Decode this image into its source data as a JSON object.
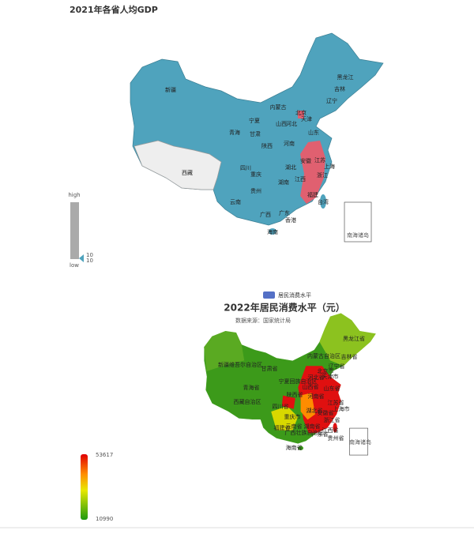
{
  "map1": {
    "title": "2021年各省人均GDP",
    "visual_map": {
      "high": "high",
      "low": "low",
      "value_labels": [
        "10",
        "10"
      ]
    },
    "regions": [
      "新疆",
      "西藏",
      "青海",
      "甘肃",
      "宁夏",
      "内蒙古",
      "黑龙江",
      "吉林",
      "辽宁",
      "北京",
      "天津",
      "河北",
      "山西",
      "山东",
      "陕西",
      "河南",
      "江苏",
      "安徽",
      "上海",
      "浙江",
      "湖北",
      "四川",
      "重庆",
      "湖南",
      "江西",
      "福建",
      "贵州",
      "云南",
      "广西",
      "广东",
      "台湾",
      "香港",
      "海南"
    ],
    "south_sea": "南海诸岛"
  },
  "map2": {
    "legend": "居民消费水平",
    "title": "2022年居民消费水平（元）",
    "subtitle": "数据来源：国家统计局",
    "visual_map": {
      "max": 53617,
      "min": 10990
    },
    "regions": [
      "黑龙江省",
      "内蒙古自治区",
      "吉林省",
      "辽宁省",
      "新疆维吾尔自治区",
      "甘肃省",
      "青海省",
      "宁夏回族自治区",
      "西藏自治区",
      "北京市",
      "天津市",
      "河北省",
      "山西省",
      "山东省",
      "陕西省",
      "河南省",
      "江苏省",
      "四川省",
      "湖北省",
      "安徽省",
      "上海市",
      "重庆市",
      "浙江省",
      "湖南省",
      "江西省",
      "贵州省",
      "云南省",
      "福建省",
      "广西壮族自治区",
      "广东省",
      "海南省"
    ],
    "south_sea": "南海诸岛"
  }
}
